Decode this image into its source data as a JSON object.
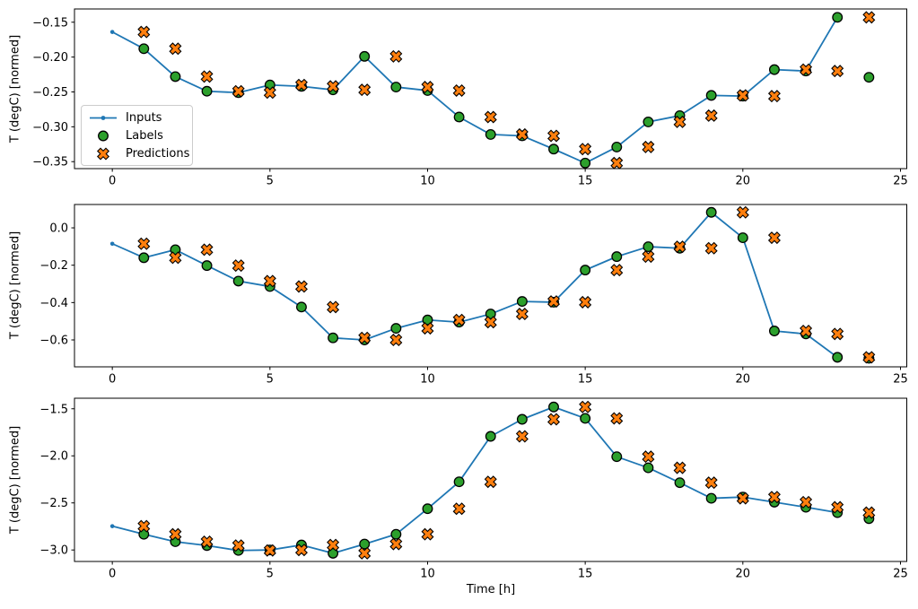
{
  "figure": {
    "xlabel": "Time [h]",
    "ylabel": "T (degC) [normed]",
    "background": "#ffffff",
    "colors": {
      "inputs": "#1f77b4",
      "labels": "#2ca02c",
      "predictions": "#ff7f0e",
      "marker_edge": "#000000",
      "axis": "#000000",
      "legend_border": "#cccccc"
    },
    "legend": {
      "position": "upper-left-of-first-subplot",
      "items": [
        {
          "label": "Inputs",
          "style": "line-dot"
        },
        {
          "label": "Labels",
          "style": "circle"
        },
        {
          "label": "Predictions",
          "style": "x"
        }
      ]
    }
  },
  "chart_data": [
    {
      "type": "line",
      "title": "",
      "ylabel": "T (degC) [normed]",
      "xlim": [
        -1.2,
        25.2
      ],
      "ylim": [
        -0.36,
        -0.131
      ],
      "grid": false,
      "xticks": {
        "values": [
          0,
          5,
          10,
          15,
          20,
          25
        ],
        "labels": [
          "0",
          "5",
          "10",
          "15",
          "20",
          "25"
        ]
      },
      "yticks": {
        "values": [
          -0.15,
          -0.2,
          -0.25,
          -0.3,
          -0.35
        ],
        "labels": [
          "−0.15",
          "−0.20",
          "−0.25",
          "−0.30",
          "−0.35"
        ]
      },
      "series": [
        {
          "name": "Inputs",
          "style": "line-dot",
          "x": [
            0,
            1,
            2,
            3,
            4,
            5,
            6,
            7,
            8,
            9,
            10,
            11,
            12,
            13,
            14,
            15,
            16,
            17,
            18,
            19,
            20,
            21,
            22,
            23
          ],
          "y": [
            -0.164,
            -0.188,
            -0.228,
            -0.249,
            -0.251,
            -0.24,
            -0.242,
            -0.247,
            -0.199,
            -0.243,
            -0.248,
            -0.286,
            -0.311,
            -0.313,
            -0.332,
            -0.352,
            -0.329,
            -0.293,
            -0.284,
            -0.255,
            -0.256,
            -0.218,
            -0.22,
            -0.143
          ]
        },
        {
          "name": "Labels",
          "style": "scatter-circle",
          "x": [
            1,
            2,
            3,
            4,
            5,
            6,
            7,
            8,
            9,
            10,
            11,
            12,
            13,
            14,
            15,
            16,
            17,
            18,
            19,
            20,
            21,
            22,
            23,
            24
          ],
          "y": [
            -0.188,
            -0.228,
            -0.249,
            -0.251,
            -0.24,
            -0.242,
            -0.247,
            -0.199,
            -0.243,
            -0.248,
            -0.286,
            -0.311,
            -0.313,
            -0.332,
            -0.352,
            -0.329,
            -0.293,
            -0.284,
            -0.255,
            -0.256,
            -0.218,
            -0.22,
            -0.143,
            -0.229
          ]
        },
        {
          "name": "Predictions",
          "style": "scatter-x",
          "x": [
            1,
            2,
            3,
            4,
            5,
            6,
            7,
            8,
            9,
            10,
            11,
            12,
            13,
            14,
            15,
            16,
            17,
            18,
            19,
            20,
            21,
            22,
            23,
            24
          ],
          "y": [
            -0.164,
            -0.188,
            -0.228,
            -0.249,
            -0.251,
            -0.24,
            -0.242,
            -0.247,
            -0.199,
            -0.243,
            -0.248,
            -0.286,
            -0.311,
            -0.313,
            -0.332,
            -0.352,
            -0.329,
            -0.293,
            -0.284,
            -0.255,
            -0.256,
            -0.218,
            -0.22,
            -0.143
          ]
        }
      ]
    },
    {
      "type": "line",
      "title": "",
      "ylabel": "T (degC) [normed]",
      "xlim": [
        -1.2,
        25.2
      ],
      "ylim": [
        -0.744,
        0.125
      ],
      "grid": false,
      "xticks": {
        "values": [
          0,
          5,
          10,
          15,
          20,
          25
        ],
        "labels": [
          "0",
          "5",
          "10",
          "15",
          "20",
          "25"
        ]
      },
      "yticks": {
        "values": [
          0.0,
          -0.2,
          -0.4,
          -0.6
        ],
        "labels": [
          "0.0",
          "−0.2",
          "−0.4",
          "−0.6"
        ]
      },
      "series": [
        {
          "name": "Inputs",
          "style": "line-dot",
          "x": [
            0,
            1,
            2,
            3,
            4,
            5,
            6,
            7,
            8,
            9,
            10,
            11,
            12,
            13,
            14,
            15,
            16,
            17,
            18,
            19,
            20,
            21,
            22,
            23
          ],
          "y": [
            -0.085,
            -0.16,
            -0.117,
            -0.202,
            -0.285,
            -0.314,
            -0.424,
            -0.589,
            -0.6,
            -0.538,
            -0.493,
            -0.505,
            -0.461,
            -0.394,
            -0.398,
            -0.226,
            -0.154,
            -0.101,
            -0.109,
            0.083,
            -0.053,
            -0.552,
            -0.568,
            -0.693
          ]
        },
        {
          "name": "Labels",
          "style": "scatter-circle",
          "x": [
            1,
            2,
            3,
            4,
            5,
            6,
            7,
            8,
            9,
            10,
            11,
            12,
            13,
            14,
            15,
            16,
            17,
            18,
            19,
            20,
            21,
            22,
            23,
            24
          ],
          "y": [
            -0.16,
            -0.117,
            -0.202,
            -0.285,
            -0.314,
            -0.424,
            -0.589,
            -0.6,
            -0.538,
            -0.493,
            -0.505,
            -0.461,
            -0.394,
            -0.398,
            -0.226,
            -0.154,
            -0.101,
            -0.109,
            0.083,
            -0.053,
            -0.552,
            -0.568,
            -0.693,
            -0.698
          ]
        },
        {
          "name": "Predictions",
          "style": "scatter-x",
          "x": [
            1,
            2,
            3,
            4,
            5,
            6,
            7,
            8,
            9,
            10,
            11,
            12,
            13,
            14,
            15,
            16,
            17,
            18,
            19,
            20,
            21,
            22,
            23,
            24
          ],
          "y": [
            -0.085,
            -0.16,
            -0.117,
            -0.202,
            -0.285,
            -0.314,
            -0.424,
            -0.589,
            -0.6,
            -0.538,
            -0.493,
            -0.505,
            -0.461,
            -0.394,
            -0.398,
            -0.226,
            -0.154,
            -0.101,
            -0.109,
            0.083,
            -0.053,
            -0.552,
            -0.568,
            -0.693
          ]
        }
      ]
    },
    {
      "type": "line",
      "title": "",
      "xlabel": "Time [h]",
      "ylabel": "T (degC) [normed]",
      "xlim": [
        -1.2,
        25.2
      ],
      "ylim": [
        -3.122,
        -1.388
      ],
      "grid": false,
      "xticks": {
        "values": [
          0,
          5,
          10,
          15,
          20,
          25
        ],
        "labels": [
          "0",
          "5",
          "10",
          "15",
          "20",
          "25"
        ]
      },
      "yticks": {
        "values": [
          -1.5,
          -2.0,
          -2.5,
          -3.0
        ],
        "labels": [
          "−1.5",
          "−2.0",
          "−2.5",
          "−3.0"
        ]
      },
      "series": [
        {
          "name": "Inputs",
          "style": "line-dot",
          "x": [
            0,
            1,
            2,
            3,
            4,
            5,
            6,
            7,
            8,
            9,
            10,
            11,
            12,
            13,
            14,
            15,
            16,
            17,
            18,
            19,
            20,
            21,
            22,
            23
          ],
          "y": [
            -2.747,
            -2.833,
            -2.912,
            -2.953,
            -3.005,
            -3.0,
            -2.947,
            -3.035,
            -2.937,
            -2.833,
            -2.562,
            -2.276,
            -1.793,
            -1.612,
            -1.481,
            -1.602,
            -2.009,
            -2.127,
            -2.285,
            -2.451,
            -2.438,
            -2.492,
            -2.546,
            -2.603
          ]
        },
        {
          "name": "Labels",
          "style": "scatter-circle",
          "x": [
            1,
            2,
            3,
            4,
            5,
            6,
            7,
            8,
            9,
            10,
            11,
            12,
            13,
            14,
            15,
            16,
            17,
            18,
            19,
            20,
            21,
            22,
            23,
            24
          ],
          "y": [
            -2.833,
            -2.912,
            -2.953,
            -3.005,
            -3.0,
            -2.947,
            -3.035,
            -2.937,
            -2.833,
            -2.562,
            -2.276,
            -1.793,
            -1.612,
            -1.481,
            -1.602,
            -2.009,
            -2.127,
            -2.285,
            -2.451,
            -2.438,
            -2.492,
            -2.546,
            -2.603,
            -2.667
          ]
        },
        {
          "name": "Predictions",
          "style": "scatter-x",
          "x": [
            1,
            2,
            3,
            4,
            5,
            6,
            7,
            8,
            9,
            10,
            11,
            12,
            13,
            14,
            15,
            16,
            17,
            18,
            19,
            20,
            21,
            22,
            23,
            24
          ],
          "y": [
            -2.747,
            -2.833,
            -2.912,
            -2.953,
            -3.005,
            -3.0,
            -2.947,
            -3.035,
            -2.937,
            -2.833,
            -2.562,
            -2.276,
            -1.793,
            -1.612,
            -1.481,
            -1.602,
            -2.009,
            -2.127,
            -2.285,
            -2.451,
            -2.438,
            -2.492,
            -2.546,
            -2.603
          ]
        }
      ]
    }
  ]
}
